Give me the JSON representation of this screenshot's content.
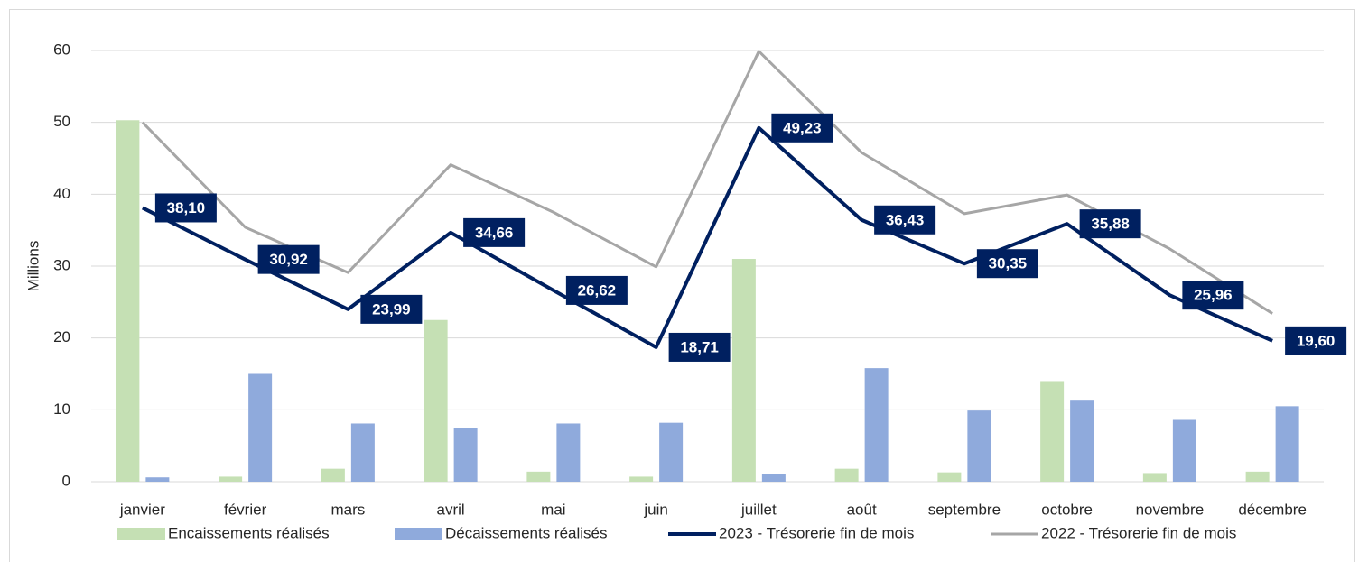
{
  "chart_data": {
    "type": "bar",
    "y_label": "Millions",
    "categories": [
      "janvier",
      "février",
      "mars",
      "avril",
      "mai",
      "juin",
      "juillet",
      "août",
      "septembre",
      "octobre",
      "novembre",
      "décembre"
    ],
    "series": [
      {
        "name": "Encaissements réalisés",
        "type": "bar",
        "color": "#c5e0b4",
        "values": [
          50.3,
          0.7,
          1.8,
          22.5,
          1.4,
          0.7,
          31,
          1.8,
          1.3,
          14,
          1.2,
          1.4
        ]
      },
      {
        "name": "Décaissements réalisés",
        "type": "bar",
        "color": "#8faadc",
        "values": [
          0.6,
          15,
          8.1,
          7.5,
          8.1,
          8.2,
          1.1,
          15.8,
          9.9,
          11.4,
          8.6,
          10.5
        ]
      },
      {
        "name": "2023 - Trésorerie fin de mois",
        "type": "line",
        "color": "#002060",
        "values": [
          38.1,
          30.92,
          23.99,
          34.66,
          26.62,
          18.71,
          49.23,
          36.43,
          30.35,
          35.88,
          25.96,
          19.6
        ],
        "value_labels": [
          "38,10",
          "30,92",
          "23,99",
          "34,66",
          "26,62",
          "18,71",
          "49,23",
          "36,43",
          "30,35",
          "35,88",
          "25,96",
          "19,60"
        ]
      },
      {
        "name": "2022 - Trésorerie fin de mois",
        "type": "line",
        "color": "#a6a6a6",
        "values": [
          50,
          35.4,
          29.1,
          44.1,
          37.5,
          29.9,
          59.9,
          45.8,
          37.3,
          39.9,
          32.4,
          23.4
        ]
      }
    ],
    "ylim": [
      0,
      60
    ],
    "yticks": [
      0,
      10,
      20,
      30,
      40,
      50,
      60
    ],
    "grid": true,
    "legend": "bottom"
  }
}
